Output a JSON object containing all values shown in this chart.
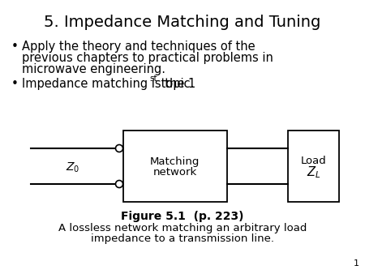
{
  "title": "5. Impedance Matching and Tuning",
  "bullet1_lines": [
    "Apply the theory and techniques of the",
    "previous chapters to practical problems in",
    "microwave engineering."
  ],
  "bullet2_prefix": "Impedance matching is the 1",
  "bullet2_sup": "st",
  "bullet2_suffix": " topic.",
  "matching_label1": "Matching",
  "matching_label2": "network",
  "load_label1": "Load",
  "fig_label": "Figure 5.1  (p. 223)",
  "fig_caption1": "A lossless network matching an arbitrary load",
  "fig_caption2": "impedance to a transmission line.",
  "page_number": "1",
  "bg_color": "#ffffff",
  "text_color": "#000000",
  "title_fontsize": 14,
  "body_fontsize": 10.5,
  "bullet_fontsize": 11,
  "fig_label_fontsize": 10,
  "caption_fontsize": 9.5,
  "page_fontsize": 8
}
